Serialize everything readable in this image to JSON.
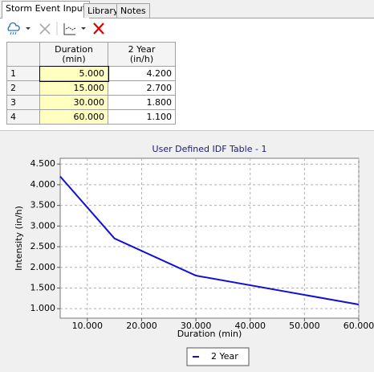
{
  "tabs": [
    "Storm Event Input",
    "Library",
    "Notes"
  ],
  "table": {
    "headers": [
      [
        "Duration",
        "(min)"
      ],
      [
        "2 Year",
        "(in/h)"
      ]
    ],
    "rows": [
      [
        "1",
        "5.000",
        "4.200"
      ],
      [
        "2",
        "15.000",
        "2.700"
      ],
      [
        "3",
        "30.000",
        "1.800"
      ],
      [
        "4",
        "60.000",
        "1.100"
      ]
    ]
  },
  "chart_data": {
    "type": "line",
    "title": "User Defined IDF Table - 1",
    "x_label": "Duration (min)",
    "y_label": "Intensity (in/h)",
    "x": [
      5,
      15,
      30,
      60
    ],
    "series": [
      {
        "name": "2 Year",
        "color": "#1010d8",
        "values": [
          4.2,
          2.7,
          1.8,
          1.1
        ]
      }
    ],
    "xlim": [
      5,
      60
    ],
    "ylim": [
      0.77,
      4.64
    ],
    "xticks": [
      {
        "value": 10,
        "label": "10.000"
      },
      {
        "value": 20,
        "label": "20.000"
      },
      {
        "value": 30,
        "label": "30.000"
      },
      {
        "value": 40,
        "label": "40.000"
      },
      {
        "value": 50,
        "label": "50.000"
      },
      {
        "value": 60,
        "label": "60.000"
      }
    ],
    "yticks": [
      {
        "value": 1,
        "label": "1.000"
      },
      {
        "value": 1.5,
        "label": "1.500"
      },
      {
        "value": 2,
        "label": "2.000"
      },
      {
        "value": 2.5,
        "label": "2.500"
      },
      {
        "value": 3,
        "label": "3.000"
      },
      {
        "value": 3.5,
        "label": "3.500"
      },
      {
        "value": 4,
        "label": "4.000"
      },
      {
        "value": 4.5,
        "label": "4.500"
      }
    ],
    "grid": true,
    "legend": "bottom"
  }
}
